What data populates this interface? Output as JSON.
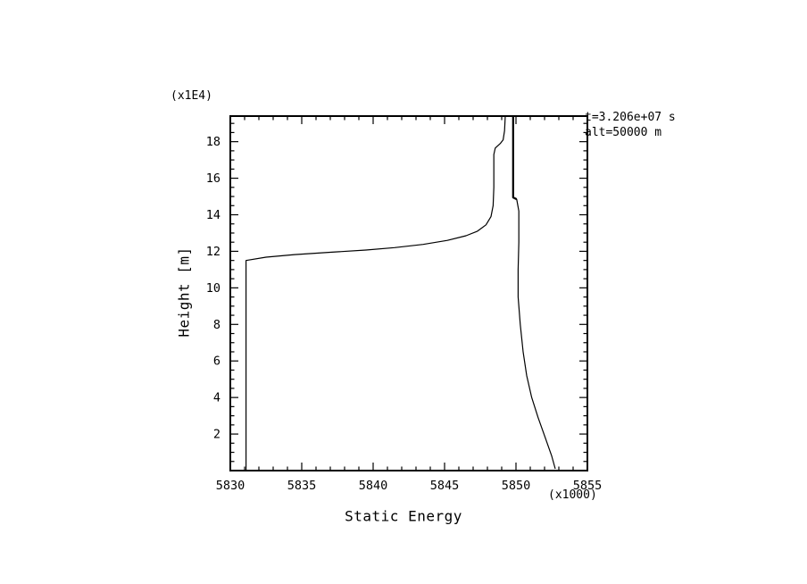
{
  "annotations": {
    "line1": "t=3.206e+07 s",
    "line2": "alt=50000 m"
  },
  "chart_data": {
    "type": "line",
    "title": "",
    "xlabel": "Static Energy",
    "ylabel": "Height [m]",
    "x_unit_label": "(x1000)",
    "y_unit_label": "(x1E4)",
    "xlim": [
      5830,
      5855
    ],
    "ylim": [
      0,
      19.4
    ],
    "x_major_ticks": [
      5830,
      5835,
      5840,
      5845,
      5850,
      5855
    ],
    "x_minor_step": 1,
    "y_major_ticks": [
      2,
      4,
      6,
      8,
      10,
      12,
      14,
      16,
      18
    ],
    "y_minor_step": 0.5,
    "grid": false,
    "legend": false,
    "line_color": "#000000",
    "background": "#ffffff",
    "series": [
      {
        "name": "static-energy-profile-lower",
        "stroke_width": 1.2,
        "points": [
          [
            5831.1,
            0
          ],
          [
            5831.1,
            11.5
          ],
          [
            5832.5,
            11.68
          ],
          [
            5834.5,
            11.82
          ],
          [
            5837,
            11.95
          ],
          [
            5839.5,
            12.07
          ],
          [
            5841.5,
            12.2
          ],
          [
            5843.5,
            12.38
          ],
          [
            5845.2,
            12.6
          ],
          [
            5846.5,
            12.85
          ],
          [
            5847.3,
            13.1
          ],
          [
            5847.9,
            13.45
          ],
          [
            5848.25,
            13.9
          ],
          [
            5848.4,
            14.5
          ],
          [
            5848.45,
            15.5
          ],
          [
            5848.45,
            17.3
          ],
          [
            5848.55,
            17.65
          ],
          [
            5848.9,
            17.9
          ],
          [
            5849.1,
            18.1
          ],
          [
            5849.2,
            18.6
          ],
          [
            5849.25,
            19.4
          ]
        ]
      },
      {
        "name": "static-energy-profile-upper-spike",
        "stroke_width": 2.2,
        "points": [
          [
            5849.8,
            19.4
          ],
          [
            5849.8,
            14.95
          ],
          [
            5850.05,
            14.85
          ]
        ]
      },
      {
        "name": "static-energy-profile-right",
        "stroke_width": 1.2,
        "points": [
          [
            5850.05,
            14.85
          ],
          [
            5850.2,
            14.2
          ],
          [
            5850.2,
            12.5
          ],
          [
            5850.15,
            11
          ],
          [
            5850.15,
            9.5
          ],
          [
            5850.3,
            8
          ],
          [
            5850.5,
            6.5
          ],
          [
            5850.75,
            5.2
          ],
          [
            5851.1,
            4
          ],
          [
            5851.55,
            2.9
          ],
          [
            5852.05,
            1.8
          ],
          [
            5852.5,
            0.8
          ],
          [
            5852.75,
            0.1
          ]
        ]
      }
    ]
  }
}
